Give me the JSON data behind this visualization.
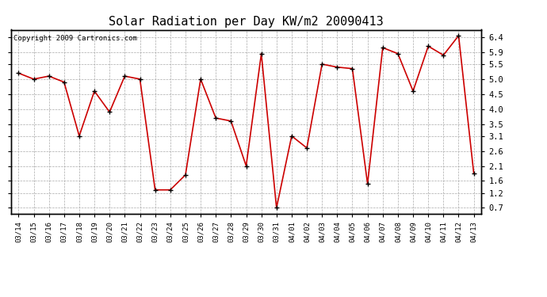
{
  "title": "Solar Radiation per Day KW/m2 20090413",
  "copyright": "Copyright 2009 Cartronics.com",
  "labels": [
    "03/14",
    "03/15",
    "03/16",
    "03/17",
    "03/18",
    "03/19",
    "03/20",
    "03/21",
    "03/22",
    "03/23",
    "03/24",
    "03/25",
    "03/26",
    "03/27",
    "03/28",
    "03/29",
    "03/30",
    "03/31",
    "04/01",
    "04/02",
    "04/03",
    "04/04",
    "04/05",
    "04/06",
    "04/07",
    "04/08",
    "04/09",
    "04/10",
    "04/11",
    "04/12",
    "04/13"
  ],
  "values": [
    5.2,
    5.0,
    5.1,
    4.9,
    3.1,
    4.6,
    3.9,
    5.1,
    5.0,
    1.3,
    1.3,
    1.8,
    5.0,
    3.7,
    3.6,
    2.1,
    5.85,
    0.7,
    3.1,
    2.7,
    5.5,
    5.4,
    5.35,
    1.5,
    6.05,
    5.85,
    4.6,
    6.1,
    5.8,
    6.45,
    1.85
  ],
  "line_color": "#cc0000",
  "marker_color": "#000000",
  "marker_size": 5,
  "ylim": [
    0.5,
    6.65
  ],
  "yticks": [
    0.7,
    1.2,
    1.6,
    2.1,
    2.6,
    3.1,
    3.5,
    4.0,
    4.5,
    5.0,
    5.5,
    5.9,
    6.4
  ],
  "background_color": "#ffffff",
  "grid_color": "#aaaaaa",
  "title_fontsize": 11,
  "copyright_fontsize": 6.5,
  "tick_fontsize": 7.5,
  "xtick_fontsize": 6.5
}
